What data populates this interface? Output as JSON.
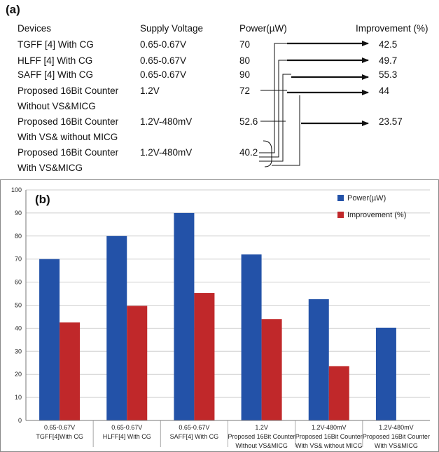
{
  "panel_a": {
    "label": "(a)",
    "headers": [
      "Devices",
      "Supply Voltage",
      "Power(µW)",
      "Improvement (%)"
    ],
    "rows": [
      {
        "device": [
          "TGFF [4] With CG"
        ],
        "voltage": "0.65-0.67V",
        "power": "70",
        "improvement": "42.5"
      },
      {
        "device": [
          "HLFF [4] With CG"
        ],
        "voltage": "0.65-0.67V",
        "power": "80",
        "improvement": "49.7"
      },
      {
        "device": [
          "SAFF [4] With CG"
        ],
        "voltage": "0.65-0.67V",
        "power": "90",
        "improvement": "55.3"
      },
      {
        "device": [
          "Proposed 16Bit Counter",
          "Without VS&MICG"
        ],
        "voltage": "1.2V",
        "power": "72",
        "improvement": "44"
      },
      {
        "device": [
          "Proposed 16Bit Counter",
          "With VS& without MICG"
        ],
        "voltage": "1.2V-480mV",
        "power": "52.6",
        "improvement": "23.57"
      },
      {
        "device": [
          "Proposed 16Bit Counter",
          "With VS&MICG"
        ],
        "voltage": "1.2V-480mV",
        "power": "40.2",
        "improvement": ""
      }
    ]
  },
  "chart_data": {
    "type": "bar",
    "panel_label": "(b)",
    "categories": [
      [
        "0.65-0.67V",
        "TGFF[4]With CG"
      ],
      [
        "0.65-0.67V",
        "HLFF[4] With CG"
      ],
      [
        "0.65-0.67V",
        "SAFF[4] With CG"
      ],
      [
        "1.2V",
        "Proposed 16Bit Counter",
        "Without VS&MICG"
      ],
      [
        "1.2V-480mV",
        "Proposed 16Bit Counter",
        "With VS& without MICG"
      ],
      [
        "1.2V-480mV",
        "Proposed 16Bit Counter",
        "With VS&MICG"
      ]
    ],
    "series": [
      {
        "name": "Power(µW)",
        "color": "#2352a8",
        "values": [
          70,
          80,
          90,
          72,
          52.6,
          40.2
        ]
      },
      {
        "name": "Improvement (%)",
        "color": "#c0282a",
        "values": [
          42.5,
          49.7,
          55.3,
          44,
          23.57,
          0
        ]
      }
    ],
    "ylim": [
      0,
      100
    ],
    "yticks": [
      0,
      10,
      20,
      30,
      40,
      50,
      60,
      70,
      80,
      90,
      100
    ],
    "grid": true,
    "legend_position": "top-right",
    "xlabel": "",
    "ylabel": ""
  }
}
